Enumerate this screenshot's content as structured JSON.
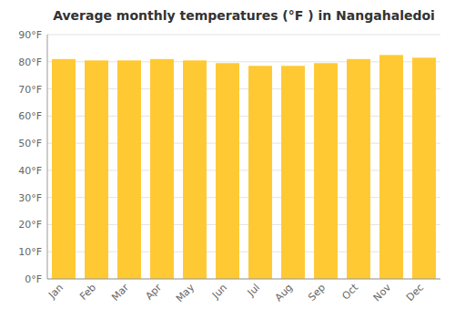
{
  "chart_data": {
    "type": "bar",
    "title": "Average monthly temperatures (°F ) in Nangahaledoi",
    "categories": [
      "Jan",
      "Feb",
      "Mar",
      "Apr",
      "May",
      "Jun",
      "Jul",
      "Aug",
      "Sep",
      "Oct",
      "Nov",
      "Dec"
    ],
    "values": [
      81.0,
      80.5,
      80.5,
      81.0,
      80.5,
      79.5,
      78.5,
      78.5,
      79.5,
      81.0,
      82.5,
      81.5
    ],
    "color": "#FFC933",
    "ylim": [
      0,
      90
    ],
    "yticks": [
      {
        "value": 0,
        "label": "0°F"
      },
      {
        "value": 10,
        "label": "10°F"
      },
      {
        "value": 20,
        "label": "20°F"
      },
      {
        "value": 30,
        "label": "30°F"
      },
      {
        "value": 40,
        "label": "40°F"
      },
      {
        "value": 50,
        "label": "50°F"
      },
      {
        "value": 60,
        "label": "60°F"
      },
      {
        "value": 70,
        "label": "70°F"
      },
      {
        "value": 80,
        "label": "80°F"
      },
      {
        "value": 90,
        "label": "90°F"
      }
    ],
    "grid": true
  }
}
